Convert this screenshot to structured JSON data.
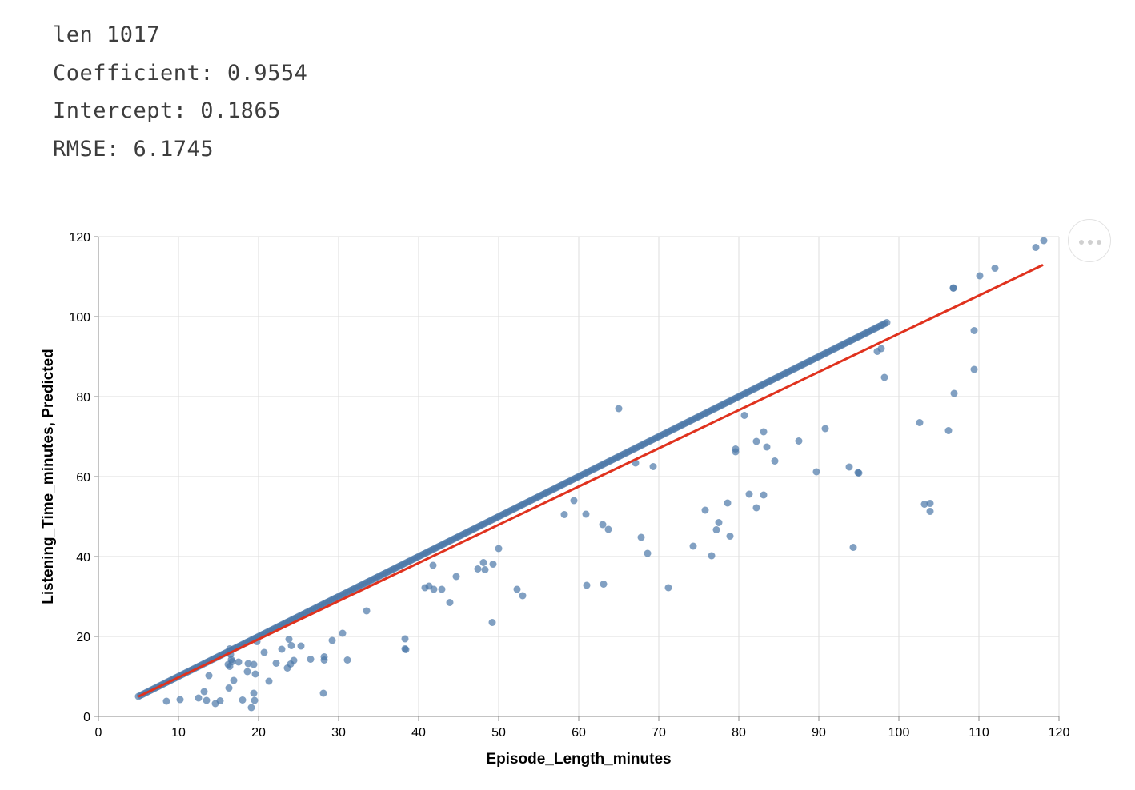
{
  "stats": {
    "len": "len 1017",
    "coefficient": "Coefficient: 0.9554",
    "intercept": "Intercept: 0.1865",
    "rmse": "RMSE: 6.1745"
  },
  "menu": {
    "icon": "more-dots-icon"
  },
  "colors": {
    "points": "#4c78a8",
    "fit_line": "#e0321e",
    "grid": "#dddddd",
    "axis": "#888888"
  },
  "chart_data": {
    "type": "scatter",
    "xlabel": "Episode_Length_minutes",
    "ylabel": "Listening_Time_minutes, Predicted",
    "xlim": [
      0,
      120
    ],
    "ylim": [
      0,
      120
    ],
    "xticks": [
      "0",
      "10",
      "20",
      "30",
      "40",
      "50",
      "60",
      "70",
      "80",
      "90",
      "100",
      "110",
      "120"
    ],
    "yticks": [
      "0",
      "20",
      "40",
      "60",
      "80",
      "100",
      "120"
    ],
    "grid": true,
    "diagonal": {
      "x_start": 5,
      "x_end": 98.6,
      "step": 0.25
    },
    "fit_line": {
      "coefficient": 0.9554,
      "intercept": 0.1865,
      "x_start": 5,
      "x_end": 118
    },
    "points": [
      [
        106.8,
        107.1
      ],
      [
        106.8,
        107.2
      ],
      [
        110.1,
        110.2
      ],
      [
        112.0,
        112.1
      ],
      [
        117.1,
        117.3
      ],
      [
        118.1,
        119.0
      ],
      [
        109.4,
        96.5
      ],
      [
        109.4,
        86.8
      ],
      [
        106.9,
        80.8
      ],
      [
        106.2,
        71.5
      ],
      [
        102.6,
        73.5
      ],
      [
        103.2,
        53.1
      ],
      [
        103.9,
        53.3
      ],
      [
        103.9,
        51.3
      ],
      [
        97.8,
        92.0
      ],
      [
        97.3,
        91.3
      ],
      [
        98.2,
        84.8
      ],
      [
        90.8,
        72.0
      ],
      [
        89.7,
        61.2
      ],
      [
        93.8,
        62.4
      ],
      [
        94.9,
        61.0
      ],
      [
        95.0,
        60.9
      ],
      [
        94.3,
        42.3
      ],
      [
        87.5,
        68.9
      ],
      [
        83.1,
        71.2
      ],
      [
        82.2,
        68.8
      ],
      [
        83.5,
        67.4
      ],
      [
        84.5,
        63.9
      ],
      [
        79.6,
        66.9
      ],
      [
        79.6,
        66.2
      ],
      [
        80.7,
        75.3
      ],
      [
        81.3,
        55.6
      ],
      [
        83.1,
        55.4
      ],
      [
        82.2,
        52.2
      ],
      [
        78.6,
        53.4
      ],
      [
        77.5,
        48.5
      ],
      [
        77.2,
        46.7
      ],
      [
        75.8,
        51.6
      ],
      [
        76.6,
        40.2
      ],
      [
        78.9,
        45.1
      ],
      [
        74.3,
        42.6
      ],
      [
        69.3,
        62.5
      ],
      [
        67.1,
        63.4
      ],
      [
        67.8,
        44.8
      ],
      [
        68.6,
        40.8
      ],
      [
        71.2,
        32.2
      ],
      [
        65.0,
        77.0
      ],
      [
        60.9,
        50.6
      ],
      [
        63.0,
        48.0
      ],
      [
        63.7,
        46.8
      ],
      [
        63.1,
        33.1
      ],
      [
        61.0,
        32.8
      ],
      [
        59.4,
        54.0
      ],
      [
        58.2,
        50.5
      ],
      [
        48.1,
        38.5
      ],
      [
        49.3,
        38.1
      ],
      [
        47.4,
        36.9
      ],
      [
        48.3,
        36.7
      ],
      [
        50.0,
        42.0
      ],
      [
        52.3,
        31.8
      ],
      [
        53.0,
        30.2
      ],
      [
        49.2,
        23.5
      ],
      [
        44.7,
        35.0
      ],
      [
        41.8,
        37.8
      ],
      [
        41.3,
        32.6
      ],
      [
        41.9,
        31.8
      ],
      [
        40.8,
        32.2
      ],
      [
        42.9,
        31.8
      ],
      [
        43.9,
        28.5
      ],
      [
        38.3,
        19.4
      ],
      [
        38.3,
        16.9
      ],
      [
        38.4,
        16.7
      ],
      [
        33.5,
        26.4
      ],
      [
        30.5,
        20.8
      ],
      [
        29.2,
        19.0
      ],
      [
        31.1,
        14.1
      ],
      [
        28.2,
        14.9
      ],
      [
        28.2,
        14.1
      ],
      [
        28.1,
        5.8
      ],
      [
        26.5,
        14.3
      ],
      [
        25.3,
        17.6
      ],
      [
        23.8,
        19.3
      ],
      [
        24.1,
        17.7
      ],
      [
        24.4,
        14.0
      ],
      [
        24.0,
        13.1
      ],
      [
        22.9,
        16.8
      ],
      [
        22.2,
        13.3
      ],
      [
        23.6,
        12.1
      ],
      [
        21.3,
        8.8
      ],
      [
        19.8,
        18.7
      ],
      [
        20.7,
        16.0
      ],
      [
        19.4,
        13.0
      ],
      [
        18.7,
        13.2
      ],
      [
        19.6,
        10.6
      ],
      [
        18.6,
        11.2
      ],
      [
        19.4,
        5.8
      ],
      [
        18.0,
        4.1
      ],
      [
        19.5,
        4.0
      ],
      [
        19.1,
        2.2
      ],
      [
        16.4,
        16.9
      ],
      [
        16.5,
        15.5
      ],
      [
        16.6,
        14.2
      ],
      [
        16.7,
        13.7
      ],
      [
        17.5,
        13.6
      ],
      [
        16.2,
        13.0
      ],
      [
        16.4,
        12.5
      ],
      [
        16.9,
        9.0
      ],
      [
        16.3,
        7.1
      ],
      [
        15.2,
        3.9
      ],
      [
        13.8,
        10.2
      ],
      [
        13.2,
        6.2
      ],
      [
        13.5,
        4.0
      ],
      [
        12.5,
        4.6
      ],
      [
        14.6,
        3.2
      ],
      [
        10.2,
        4.2
      ],
      [
        8.5,
        3.8
      ]
    ]
  }
}
